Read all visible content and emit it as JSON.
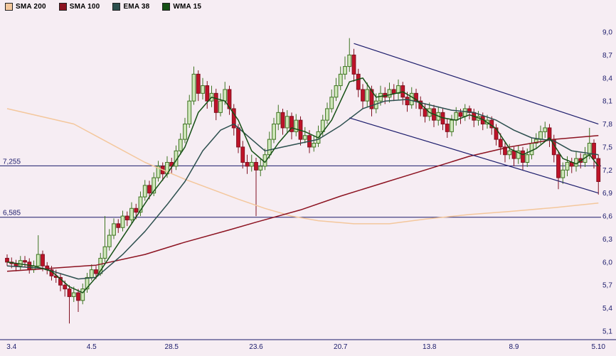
{
  "legend": {
    "items": [
      {
        "label": "SMA 200",
        "color": "#f4c79c"
      },
      {
        "label": "SMA 100",
        "color": "#8c1220"
      },
      {
        "label": "EMA 38",
        "color": "#2c4f4e"
      },
      {
        "label": "WMA 15",
        "color": "#155015"
      }
    ]
  },
  "chart_data": {
    "type": "candlestick",
    "title": "",
    "y_range": [
      5.1,
      9.0
    ],
    "grid": "off",
    "legend_position": "top-left",
    "colors": {
      "background": "#f6edf3",
      "axis": "#1b1b6b",
      "up_fill": "#cfe7ba",
      "up_stroke": "#3f7522",
      "down_fill": "#bf1328",
      "down_stroke": "#801020",
      "trend_line": "#1b1b6b"
    },
    "y_ticks": [
      {
        "label": "9,0",
        "value": 9.0
      },
      {
        "label": "8,7",
        "value": 8.7
      },
      {
        "label": "8,4",
        "value": 8.4
      },
      {
        "label": "8,1",
        "value": 8.1
      },
      {
        "label": "7,8",
        "value": 7.8
      },
      {
        "label": "7,5",
        "value": 7.5
      },
      {
        "label": "7,2",
        "value": 7.2
      },
      {
        "label": "6,9",
        "value": 6.9
      },
      {
        "label": "6,6",
        "value": 6.6
      },
      {
        "label": "6,3",
        "value": 6.3
      },
      {
        "label": "6,0",
        "value": 6.0
      },
      {
        "label": "5,7",
        "value": 5.7
      },
      {
        "label": "5,4",
        "value": 5.4
      },
      {
        "label": "5,1",
        "value": 5.1
      }
    ],
    "x_ticks": [
      {
        "label": "3.4",
        "index": 1
      },
      {
        "label": "4.5",
        "index": 19
      },
      {
        "label": "28.5",
        "index": 37
      },
      {
        "label": "23.6",
        "index": 56
      },
      {
        "label": "20.7",
        "index": 75
      },
      {
        "label": "13.8",
        "index": 95
      },
      {
        "label": "8.9",
        "index": 114
      },
      {
        "label": "5.10",
        "index": 133
      }
    ],
    "hlines": [
      {
        "label": "7,255",
        "value": 7.255
      },
      {
        "label": "6,585",
        "value": 6.585
      }
    ],
    "trend_lines": [
      {
        "from": [
          78,
          8.85
        ],
        "to": [
          133,
          7.8
        ]
      },
      {
        "from": [
          77,
          7.88
        ],
        "to": [
          133,
          6.9
        ]
      }
    ],
    "overlays": [
      {
        "name": "SMA 200",
        "color": "#f4c79c",
        "points": [
          [
            0,
            8.0
          ],
          [
            15,
            7.8
          ],
          [
            31,
            7.3
          ],
          [
            40,
            7.08
          ],
          [
            46,
            6.95
          ],
          [
            52,
            6.82
          ],
          [
            58,
            6.7
          ],
          [
            64,
            6.6
          ],
          [
            70,
            6.54
          ],
          [
            78,
            6.5
          ],
          [
            86,
            6.5
          ],
          [
            94,
            6.56
          ],
          [
            104,
            6.62
          ],
          [
            113,
            6.66
          ],
          [
            123,
            6.71
          ],
          [
            133,
            6.77
          ]
        ]
      },
      {
        "name": "SMA 100",
        "color": "#8c1220",
        "points": [
          [
            0,
            5.88
          ],
          [
            10,
            5.92
          ],
          [
            20,
            5.96
          ],
          [
            31,
            6.1
          ],
          [
            40,
            6.26
          ],
          [
            50,
            6.42
          ],
          [
            56,
            6.52
          ],
          [
            66,
            6.68
          ],
          [
            75,
            6.86
          ],
          [
            85,
            7.04
          ],
          [
            94,
            7.2
          ],
          [
            104,
            7.38
          ],
          [
            113,
            7.5
          ],
          [
            123,
            7.6
          ],
          [
            133,
            7.65
          ]
        ]
      },
      {
        "name": "EMA 38",
        "color": "#2c4f4e",
        "points": [
          [
            0,
            5.95
          ],
          [
            8,
            5.92
          ],
          [
            16,
            5.78
          ],
          [
            20,
            5.8
          ],
          [
            26,
            6.1
          ],
          [
            31,
            6.4
          ],
          [
            36,
            6.75
          ],
          [
            40,
            7.05
          ],
          [
            44,
            7.45
          ],
          [
            48,
            7.72
          ],
          [
            51,
            7.8
          ],
          [
            54,
            7.65
          ],
          [
            58,
            7.45
          ],
          [
            62,
            7.5
          ],
          [
            66,
            7.55
          ],
          [
            70,
            7.6
          ],
          [
            75,
            7.78
          ],
          [
            80,
            8.0
          ],
          [
            85,
            8.1
          ],
          [
            90,
            8.12
          ],
          [
            95,
            8.05
          ],
          [
            100,
            7.98
          ],
          [
            105,
            7.95
          ],
          [
            110,
            7.85
          ],
          [
            114,
            7.72
          ],
          [
            118,
            7.62
          ],
          [
            123,
            7.58
          ],
          [
            127,
            7.45
          ],
          [
            133,
            7.4
          ]
        ]
      },
      {
        "name": "WMA 15",
        "color": "#155015",
        "points": [
          [
            0,
            6.0
          ],
          [
            6,
            5.95
          ],
          [
            10,
            5.88
          ],
          [
            14,
            5.68
          ],
          [
            17,
            5.6
          ],
          [
            20,
            5.8
          ],
          [
            24,
            6.15
          ],
          [
            28,
            6.5
          ],
          [
            32,
            6.85
          ],
          [
            36,
            7.15
          ],
          [
            40,
            7.5
          ],
          [
            43,
            7.95
          ],
          [
            46,
            8.15
          ],
          [
            49,
            8.1
          ],
          [
            52,
            7.85
          ],
          [
            55,
            7.45
          ],
          [
            58,
            7.3
          ],
          [
            61,
            7.55
          ],
          [
            64,
            7.75
          ],
          [
            67,
            7.7
          ],
          [
            70,
            7.62
          ],
          [
            73,
            7.85
          ],
          [
            77,
            8.35
          ],
          [
            80,
            8.4
          ],
          [
            83,
            8.15
          ],
          [
            86,
            8.18
          ],
          [
            89,
            8.22
          ],
          [
            92,
            8.12
          ],
          [
            95,
            7.95
          ],
          [
            98,
            7.88
          ],
          [
            101,
            7.85
          ],
          [
            104,
            7.92
          ],
          [
            107,
            7.86
          ],
          [
            110,
            7.74
          ],
          [
            113,
            7.48
          ],
          [
            116,
            7.4
          ],
          [
            119,
            7.48
          ],
          [
            122,
            7.62
          ],
          [
            125,
            7.35
          ],
          [
            128,
            7.28
          ],
          [
            131,
            7.4
          ],
          [
            133,
            7.25
          ]
        ]
      }
    ],
    "candles": [
      [
        6.05,
        6.1,
        5.95,
        6.0
      ],
      [
        6.0,
        6.06,
        5.92,
        5.98
      ],
      [
        5.98,
        6.03,
        5.88,
        5.95
      ],
      [
        5.95,
        6.08,
        5.9,
        6.02
      ],
      [
        6.02,
        6.08,
        5.94,
        6.0
      ],
      [
        6.0,
        6.05,
        5.85,
        5.9
      ],
      [
        5.9,
        6.02,
        5.86,
        5.95
      ],
      [
        5.95,
        6.35,
        5.92,
        6.1
      ],
      [
        6.1,
        6.15,
        5.88,
        5.95
      ],
      [
        5.95,
        6.0,
        5.84,
        5.9
      ],
      [
        5.9,
        5.95,
        5.76,
        5.82
      ],
      [
        5.82,
        5.9,
        5.73,
        5.8
      ],
      [
        5.8,
        5.85,
        5.62,
        5.7
      ],
      [
        5.7,
        5.76,
        5.55,
        5.65
      ],
      [
        5.65,
        5.7,
        5.2,
        5.55
      ],
      [
        5.55,
        5.68,
        5.48,
        5.6
      ],
      [
        5.6,
        5.65,
        5.35,
        5.5
      ],
      [
        5.5,
        5.72,
        5.45,
        5.65
      ],
      [
        5.65,
        5.86,
        5.6,
        5.8
      ],
      [
        5.8,
        5.97,
        5.76,
        5.9
      ],
      [
        5.9,
        5.95,
        5.78,
        5.85
      ],
      [
        5.85,
        6.12,
        5.82,
        6.05
      ],
      [
        6.05,
        6.6,
        6.0,
        6.2
      ],
      [
        6.2,
        6.43,
        6.15,
        6.35
      ],
      [
        6.35,
        6.57,
        6.3,
        6.5
      ],
      [
        6.5,
        6.56,
        6.38,
        6.45
      ],
      [
        6.45,
        6.67,
        6.4,
        6.6
      ],
      [
        6.6,
        6.66,
        6.47,
        6.55
      ],
      [
        6.55,
        6.78,
        6.5,
        6.7
      ],
      [
        6.7,
        6.76,
        6.56,
        6.65
      ],
      [
        6.65,
        6.92,
        6.6,
        6.85
      ],
      [
        6.85,
        7.07,
        6.8,
        7.0
      ],
      [
        7.0,
        7.06,
        6.82,
        6.9
      ],
      [
        6.9,
        7.17,
        6.86,
        7.1
      ],
      [
        7.1,
        7.32,
        7.05,
        7.25
      ],
      [
        7.25,
        7.3,
        7.06,
        7.15
      ],
      [
        7.15,
        7.38,
        7.1,
        7.3
      ],
      [
        7.3,
        7.36,
        7.16,
        7.25
      ],
      [
        7.25,
        7.52,
        7.2,
        7.45
      ],
      [
        7.45,
        7.68,
        7.4,
        7.6
      ],
      [
        7.6,
        7.88,
        7.55,
        7.8
      ],
      [
        7.8,
        8.18,
        7.75,
        8.1
      ],
      [
        8.1,
        8.55,
        8.05,
        8.45
      ],
      [
        8.45,
        8.5,
        8.1,
        8.2
      ],
      [
        8.2,
        8.4,
        8.12,
        8.3
      ],
      [
        8.3,
        8.36,
        8.0,
        8.1
      ],
      [
        8.1,
        8.3,
        8.02,
        8.2
      ],
      [
        8.2,
        8.26,
        7.85,
        7.95
      ],
      [
        7.95,
        8.2,
        7.9,
        8.1
      ],
      [
        8.1,
        8.35,
        8.05,
        8.25
      ],
      [
        8.25,
        8.3,
        7.92,
        8.0
      ],
      [
        8.0,
        8.06,
        7.65,
        7.75
      ],
      [
        7.75,
        7.8,
        7.42,
        7.5
      ],
      [
        7.5,
        7.58,
        7.22,
        7.3
      ],
      [
        7.3,
        7.4,
        7.15,
        7.25
      ],
      [
        7.25,
        7.4,
        7.18,
        7.3
      ],
      [
        7.3,
        7.36,
        6.6,
        7.2
      ],
      [
        7.2,
        7.35,
        7.12,
        7.25
      ],
      [
        7.25,
        7.48,
        7.2,
        7.4
      ],
      [
        7.4,
        7.7,
        7.35,
        7.6
      ],
      [
        7.6,
        7.88,
        7.55,
        7.8
      ],
      [
        7.8,
        8.05,
        7.72,
        7.95
      ],
      [
        7.95,
        8.0,
        7.66,
        7.75
      ],
      [
        7.75,
        7.98,
        7.68,
        7.9
      ],
      [
        7.9,
        7.95,
        7.6,
        7.7
      ],
      [
        7.7,
        7.93,
        7.64,
        7.85
      ],
      [
        7.85,
        7.9,
        7.52,
        7.6
      ],
      [
        7.6,
        7.76,
        7.55,
        7.65
      ],
      [
        7.65,
        7.72,
        7.42,
        7.5
      ],
      [
        7.5,
        7.65,
        7.44,
        7.55
      ],
      [
        7.55,
        7.78,
        7.5,
        7.7
      ],
      [
        7.7,
        7.92,
        7.64,
        7.85
      ],
      [
        7.85,
        8.08,
        7.8,
        8.0
      ],
      [
        8.0,
        8.25,
        7.95,
        8.15
      ],
      [
        8.15,
        8.4,
        8.1,
        8.3
      ],
      [
        8.3,
        8.55,
        8.24,
        8.45
      ],
      [
        8.45,
        8.68,
        8.38,
        8.55
      ],
      [
        8.55,
        8.92,
        8.48,
        8.7
      ],
      [
        8.7,
        8.78,
        8.35,
        8.45
      ],
      [
        8.45,
        8.52,
        8.15,
        8.25
      ],
      [
        8.25,
        8.32,
        8.0,
        8.1
      ],
      [
        8.1,
        8.34,
        8.02,
        8.25
      ],
      [
        8.25,
        8.3,
        7.9,
        8.0
      ],
      [
        8.0,
        8.2,
        7.94,
        8.1
      ],
      [
        8.1,
        8.3,
        8.04,
        8.2
      ],
      [
        8.2,
        8.28,
        8.06,
        8.15
      ],
      [
        8.15,
        8.34,
        8.08,
        8.25
      ],
      [
        8.25,
        8.32,
        8.1,
        8.2
      ],
      [
        8.2,
        8.38,
        8.12,
        8.3
      ],
      [
        8.3,
        8.35,
        8.05,
        8.15
      ],
      [
        8.15,
        8.22,
        7.96,
        8.05
      ],
      [
        8.05,
        8.28,
        8.0,
        8.2
      ],
      [
        8.2,
        8.26,
        8.0,
        8.1
      ],
      [
        8.1,
        8.16,
        7.9,
        8.0
      ],
      [
        8.0,
        8.06,
        7.82,
        7.9
      ],
      [
        7.9,
        8.08,
        7.84,
        8.0
      ],
      [
        8.0,
        8.05,
        7.76,
        7.85
      ],
      [
        7.85,
        8.03,
        7.78,
        7.95
      ],
      [
        7.95,
        8.0,
        7.72,
        7.8
      ],
      [
        7.8,
        7.87,
        7.62,
        7.7
      ],
      [
        7.7,
        7.92,
        7.64,
        7.85
      ],
      [
        7.85,
        8.02,
        7.78,
        7.95
      ],
      [
        7.95,
        8.0,
        7.8,
        7.9
      ],
      [
        7.9,
        8.06,
        7.84,
        8.0
      ],
      [
        8.0,
        8.04,
        7.86,
        7.95
      ],
      [
        7.95,
        8.0,
        7.76,
        7.85
      ],
      [
        7.85,
        7.97,
        7.78,
        7.9
      ],
      [
        7.9,
        7.95,
        7.72,
        7.8
      ],
      [
        7.8,
        7.92,
        7.74,
        7.85
      ],
      [
        7.85,
        7.9,
        7.66,
        7.75
      ],
      [
        7.75,
        7.8,
        7.52,
        7.6
      ],
      [
        7.6,
        7.68,
        7.4,
        7.5
      ],
      [
        7.5,
        7.56,
        7.3,
        7.4
      ],
      [
        7.4,
        7.54,
        7.34,
        7.45
      ],
      [
        7.45,
        7.5,
        7.25,
        7.35
      ],
      [
        7.35,
        7.52,
        7.28,
        7.45
      ],
      [
        7.45,
        7.5,
        7.2,
        7.3
      ],
      [
        7.3,
        7.48,
        7.24,
        7.4
      ],
      [
        7.4,
        7.62,
        7.34,
        7.55
      ],
      [
        7.55,
        7.68,
        7.48,
        7.6
      ],
      [
        7.6,
        7.78,
        7.54,
        7.7
      ],
      [
        7.7,
        7.83,
        7.62,
        7.75
      ],
      [
        7.75,
        7.8,
        7.5,
        7.6
      ],
      [
        7.6,
        7.66,
        7.3,
        7.4
      ],
      [
        7.4,
        7.45,
        6.95,
        7.1
      ],
      [
        7.1,
        7.3,
        7.02,
        7.2
      ],
      [
        7.2,
        7.38,
        7.12,
        7.3
      ],
      [
        7.3,
        7.36,
        7.16,
        7.25
      ],
      [
        7.25,
        7.44,
        7.18,
        7.35
      ],
      [
        7.35,
        7.42,
        7.22,
        7.3
      ],
      [
        7.3,
        7.5,
        7.24,
        7.4
      ],
      [
        7.4,
        7.75,
        7.34,
        7.55
      ],
      [
        7.55,
        7.6,
        7.22,
        7.35
      ],
      [
        7.35,
        7.4,
        6.88,
        7.05
      ]
    ]
  }
}
